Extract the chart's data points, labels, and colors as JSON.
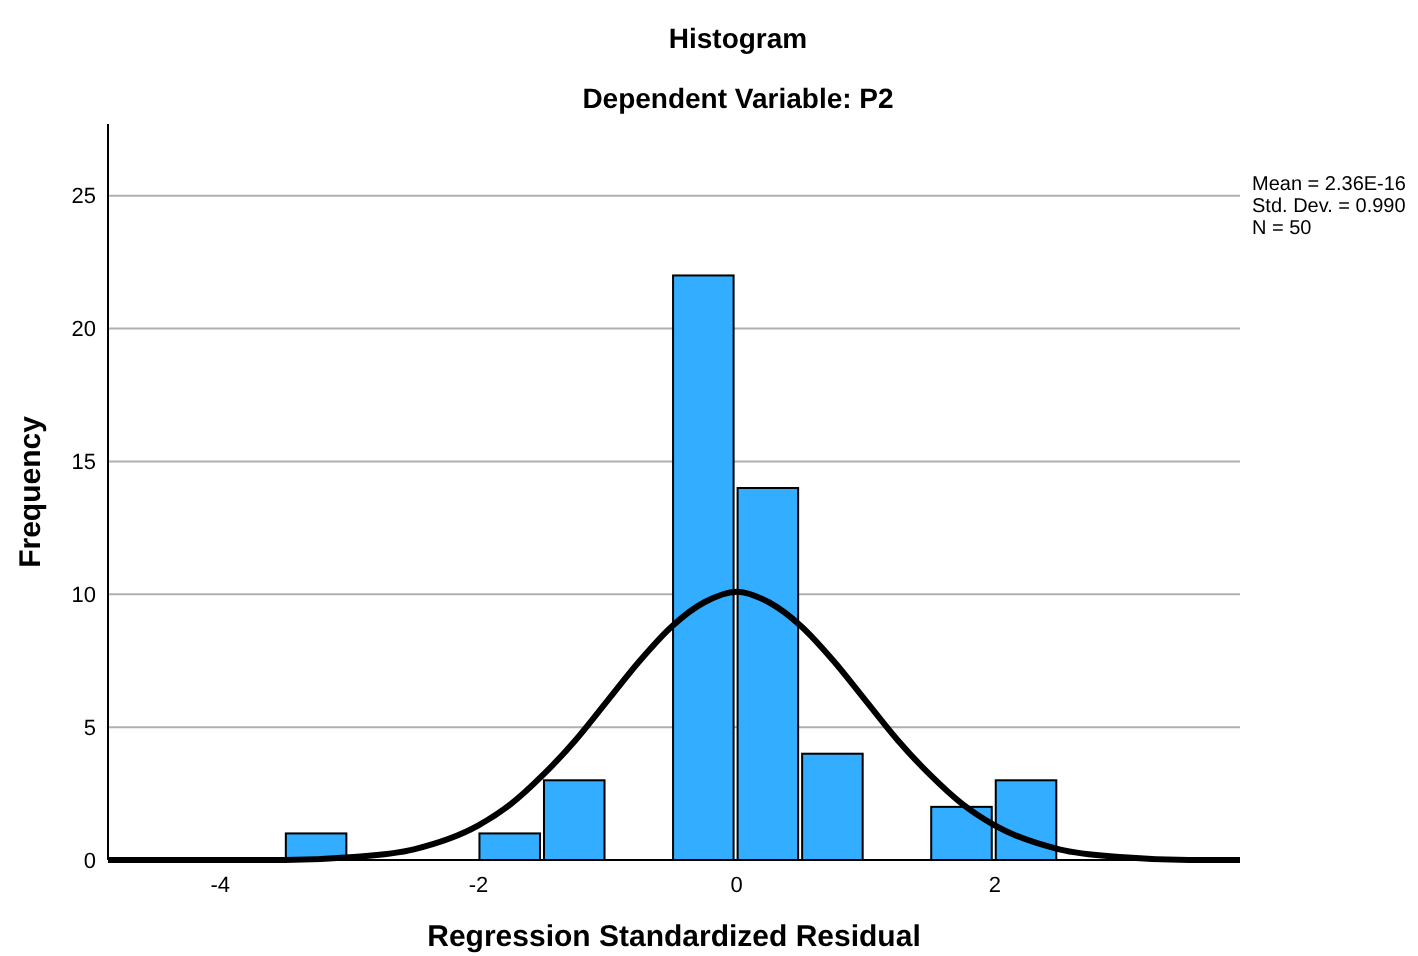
{
  "chart_data": {
    "type": "histogram",
    "title": "Histogram",
    "subtitle": "Dependent Variable: P2",
    "xlabel": "Regression Standardized Residual",
    "ylabel": "Frequency",
    "annotations": [
      "Mean = 2.36E-16",
      "Std. Dev. = 0.990",
      "N = 50"
    ],
    "xlim": [
      -4.87,
      3.9
    ],
    "xticks": [
      -4,
      -2,
      0,
      2
    ],
    "ylim": [
      0,
      27.7
    ],
    "yticks": [
      0,
      5,
      10,
      15,
      20,
      25
    ],
    "grid": "y",
    "series": [
      {
        "color": "#33adff",
        "bins": [
          -3.5,
          -3,
          -2.5,
          -2,
          -1.5,
          -1,
          -0.5,
          0,
          0.5,
          1,
          1.5,
          2,
          2.5
        ],
        "values": [
          1,
          0,
          0,
          1,
          3,
          0,
          22,
          14,
          4,
          0,
          2,
          3
        ]
      },
      {
        "type": "line",
        "color": "#000000",
        "x": [
          -4.87,
          -4,
          -3.5,
          -3,
          -2.5,
          -2,
          -1.75,
          -1.5,
          -1.25,
          -1,
          -0.75,
          -0.5,
          -0.25,
          0,
          0.25,
          0.5,
          0.75,
          1,
          1.25,
          1.5,
          1.75,
          2,
          2.5,
          3,
          3.5,
          3.9
        ],
        "values": [
          0,
          0,
          0,
          0.1,
          0.4,
          1.3,
          2.1,
          3.2,
          4.5,
          6,
          7.5,
          8.8,
          9.7,
          10.1,
          9.7,
          8.8,
          7.5,
          6,
          4.5,
          3.2,
          2.1,
          1.3,
          0.4,
          0.1,
          0,
          0
        ]
      }
    ]
  }
}
